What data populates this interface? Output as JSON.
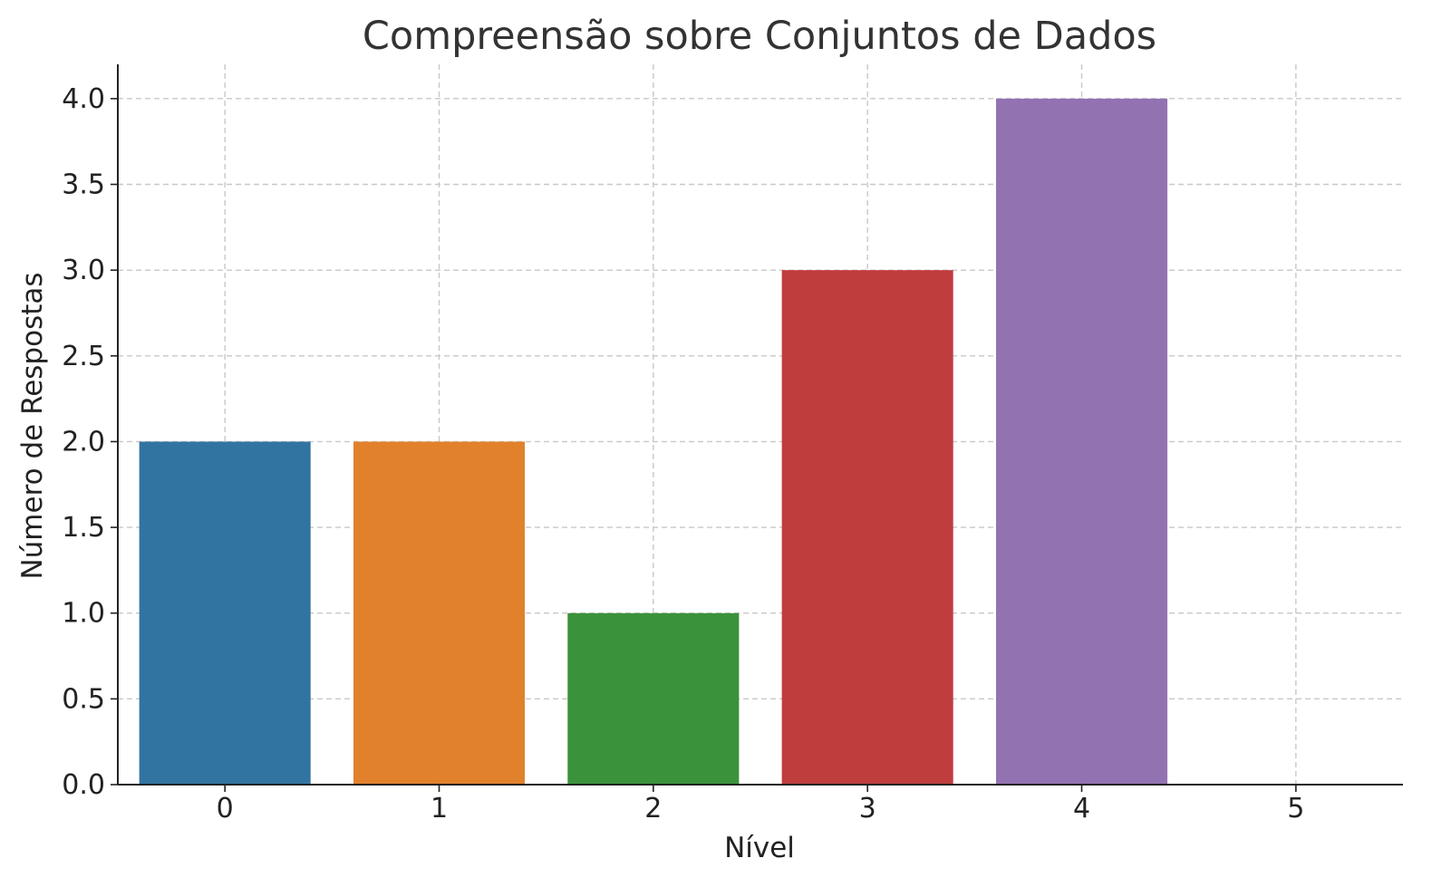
{
  "chart_data": {
    "type": "bar",
    "title": "Compreensão sobre Conjuntos de Dados",
    "xlabel": "Nível",
    "ylabel": "Número de Respostas",
    "categories": [
      "0",
      "1",
      "2",
      "3",
      "4",
      "5"
    ],
    "values": [
      2,
      2,
      1,
      3,
      4,
      0
    ],
    "colors": [
      "#3274a1",
      "#e1812c",
      "#3a923a",
      "#c03d3e",
      "#9372b2",
      "#845b53"
    ],
    "ylim": [
      0,
      4.2
    ],
    "yticks": [
      0.0,
      0.5,
      1.0,
      1.5,
      2.0,
      2.5,
      3.0,
      3.5,
      4.0
    ],
    "ytick_labels": [
      "0.0",
      "0.5",
      "1.0",
      "1.5",
      "2.0",
      "2.5",
      "3.0",
      "3.5",
      "4.0"
    ],
    "grid": true
  }
}
